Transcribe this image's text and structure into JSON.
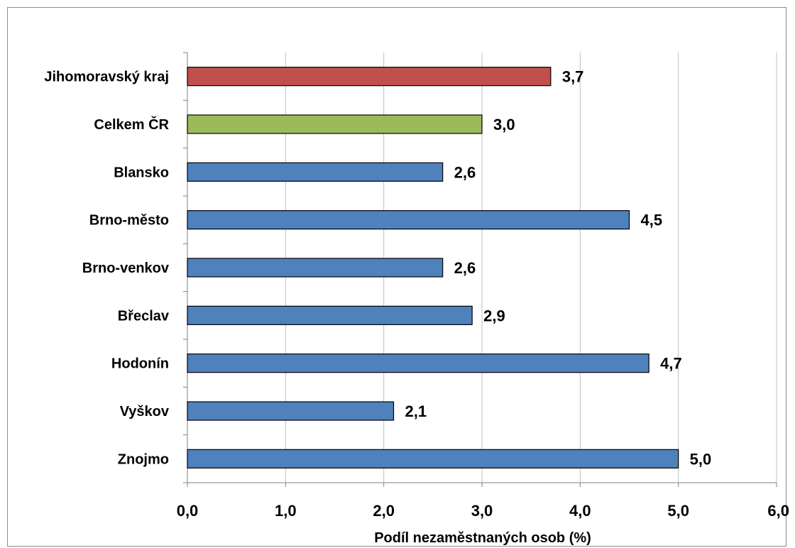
{
  "chart_data": {
    "type": "bar",
    "orientation": "horizontal",
    "categories": [
      "Jihomoravský kraj",
      "Celkem ČR",
      "Blansko",
      "Brno-město",
      "Brno-venkov",
      "Břeclav",
      "Hodonín",
      "Vyškov",
      "Znojmo"
    ],
    "values": [
      3.7,
      3.0,
      2.6,
      4.5,
      2.6,
      2.9,
      4.7,
      2.1,
      5.0
    ],
    "data_labels": [
      "3,7",
      "3,0",
      "2,6",
      "4,5",
      "2,6",
      "2,9",
      "4,7",
      "2,1",
      "5,0"
    ],
    "bar_colors": [
      "#c0504d",
      "#9bbb59",
      "#4f81bd",
      "#4f81bd",
      "#4f81bd",
      "#4f81bd",
      "#4f81bd",
      "#4f81bd",
      "#4f81bd"
    ],
    "xlabel": "Podíl nezaměstnaných osob (%)",
    "xlim": [
      0,
      6
    ],
    "x_ticks": [
      0,
      1,
      2,
      3,
      4,
      5,
      6
    ],
    "x_tick_labels": [
      "0,0",
      "1,0",
      "2,0",
      "3,0",
      "4,0",
      "5,0",
      "6,0"
    ],
    "grid": "vertical",
    "grid_color": "#bfbfbf",
    "legend": "none"
  }
}
